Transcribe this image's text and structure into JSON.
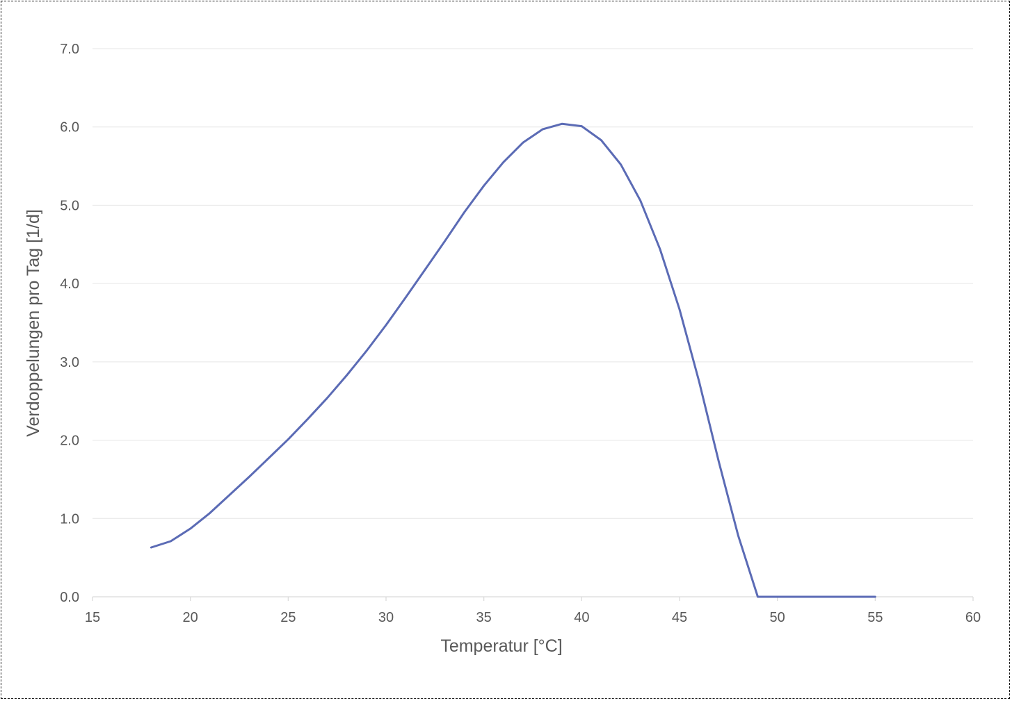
{
  "chart_data": {
    "type": "line",
    "title": "",
    "xlabel": "Temperatur [°C]",
    "ylabel": "Verdoppelungen pro Tag [1/d]",
    "xlim": [
      15,
      60
    ],
    "ylim": [
      0,
      7
    ],
    "x_ticks": [
      "15",
      "20",
      "25",
      "30",
      "35",
      "40",
      "45",
      "50",
      "55",
      "60"
    ],
    "y_ticks": [
      "0.0",
      "1.0",
      "2.0",
      "3.0",
      "4.0",
      "5.0",
      "6.0",
      "7.0"
    ],
    "grid": true,
    "legend": "none",
    "series": [
      {
        "color": "#5b6bb5",
        "x": [
          18,
          19,
          20,
          21,
          22,
          23,
          24,
          25,
          26,
          27,
          28,
          29,
          30,
          31,
          32,
          33,
          34,
          35,
          36,
          37,
          38,
          39,
          40,
          41,
          42,
          43,
          44,
          45,
          46,
          47,
          48,
          49,
          50,
          51,
          52,
          53,
          54,
          55
        ],
        "y": [
          0.63,
          0.71,
          0.87,
          1.07,
          1.3,
          1.53,
          1.77,
          2.01,
          2.27,
          2.54,
          2.83,
          3.14,
          3.47,
          3.82,
          4.18,
          4.54,
          4.91,
          5.25,
          5.55,
          5.8,
          5.97,
          6.04,
          6.01,
          5.83,
          5.52,
          5.06,
          4.44,
          3.67,
          2.75,
          1.73,
          0.78,
          0.0,
          0.0,
          0.0,
          0.0,
          0.0,
          0.0,
          0.0
        ]
      }
    ]
  }
}
